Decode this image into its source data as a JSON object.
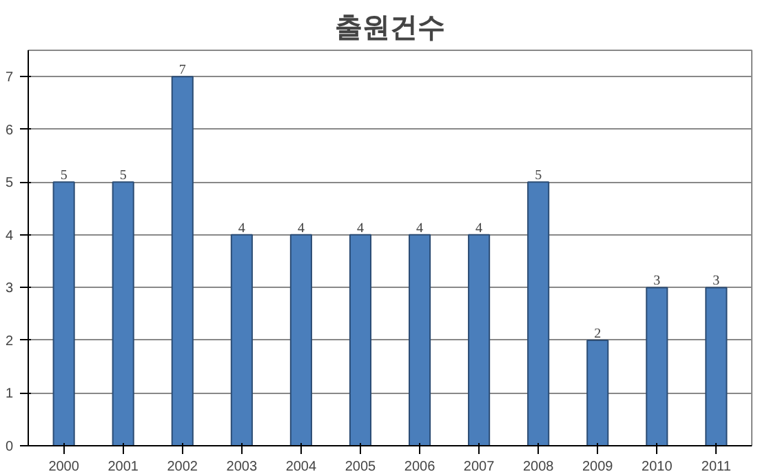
{
  "chart_data": {
    "type": "bar",
    "title": "출원건수",
    "categories": [
      "2000",
      "2001",
      "2002",
      "2003",
      "2004",
      "2005",
      "2006",
      "2007",
      "2008",
      "2009",
      "2010",
      "2011"
    ],
    "values": [
      5,
      5,
      7,
      4,
      4,
      4,
      4,
      4,
      5,
      2,
      3,
      3
    ],
    "color": "#4a7ebb",
    "ylim": [
      0,
      7.5
    ],
    "yticks": [
      0,
      1,
      2,
      3,
      4,
      5,
      6,
      7
    ],
    "grid": "y",
    "data_labels": true
  }
}
